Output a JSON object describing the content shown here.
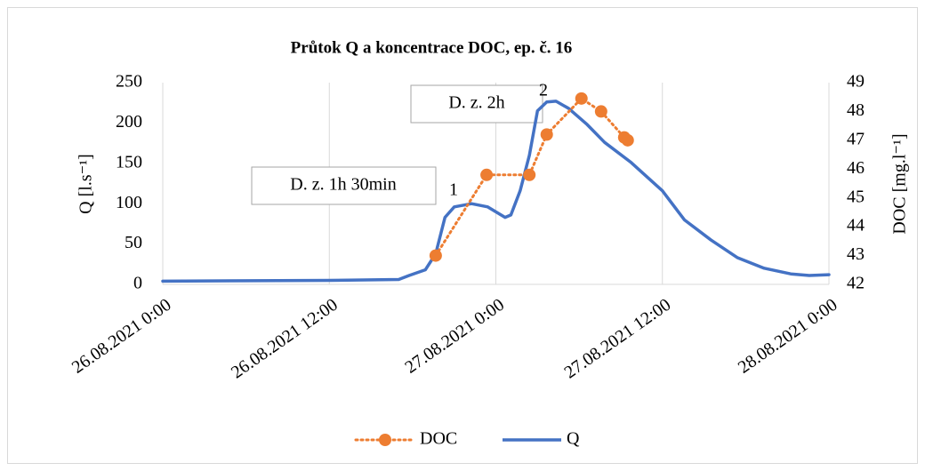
{
  "chart_data": {
    "type": "line",
    "title": "Průtok Q a koncentrace DOC, ep. č. 16",
    "y_label": "Q [l.s⁻¹]",
    "y2_label": "DOC [mg.l⁻¹]",
    "xlim": [
      "26.08.2021 0:00",
      "28.08.2021 0:00"
    ],
    "xticks": [
      "26.08.2021 0:00",
      "26.08.2021 12:00",
      "27.08.2021 0:00",
      "27.08.2021 12:00",
      "28.08.2021 0:00"
    ],
    "ylim": [
      0,
      250
    ],
    "yticks": [
      0,
      50,
      100,
      150,
      200,
      250
    ],
    "y2lim": [
      42,
      49
    ],
    "y2ticks": [
      42,
      43,
      44,
      45,
      46,
      47,
      48,
      49
    ],
    "grid": "x",
    "legend": "bottom",
    "annotations": [
      "D. z. 1h 30min",
      "D. z. 2h",
      "1",
      "2"
    ],
    "series": [
      {
        "name": "DOC",
        "color": "#ed7d31",
        "axis": "y2",
        "style": "dotted-markers",
        "x": [
          "26.08.2021 19:40",
          "26.08.2021 23:20",
          "27.08.2021 2:25",
          "27.08.2021 3:40",
          "27.08.2021 6:10",
          "27.08.2021 7:35",
          "27.08.2021 9:15",
          "27.08.2021 9:30"
        ],
        "values": [
          43.0,
          45.8,
          45.8,
          47.2,
          48.45,
          48.0,
          47.1,
          47.0
        ]
      },
      {
        "name": "Q",
        "color": "#4472c4",
        "axis": "y",
        "style": "solid",
        "x": [
          "26.08.2021 0:00",
          "26.08.2021 12:00",
          "26.08.2021 17:00",
          "26.08.2021 17:45",
          "26.08.2021 18:55",
          "26.08.2021 19:40",
          "26.08.2021 20:20",
          "26.08.2021 21:00",
          "26.08.2021 22:15",
          "26.08.2021 23:25",
          "27.08.2021 0:40",
          "27.08.2021 1:05",
          "27.08.2021 1:45",
          "27.08.2021 2:25",
          "27.08.2021 3:00",
          "27.08.2021 3:40",
          "27.08.2021 4:20",
          "27.08.2021 5:15",
          "27.08.2021 6:35",
          "27.08.2021 7:50",
          "27.08.2021 9:45",
          "27.08.2021 12:00",
          "27.08.2021 13:35",
          "27.08.2021 15:30",
          "27.08.2021 17:25",
          "27.08.2021 19:20",
          "27.08.2021 21:15",
          "27.08.2021 22:35",
          "28.08.2021 0:00"
        ],
        "values": [
          4,
          5,
          6,
          11,
          18,
          38,
          83,
          96,
          100,
          96,
          83,
          86,
          116,
          160,
          215,
          226,
          227,
          218,
          198,
          176,
          151,
          116,
          80,
          55,
          33,
          20,
          13,
          11,
          12
        ]
      }
    ]
  }
}
